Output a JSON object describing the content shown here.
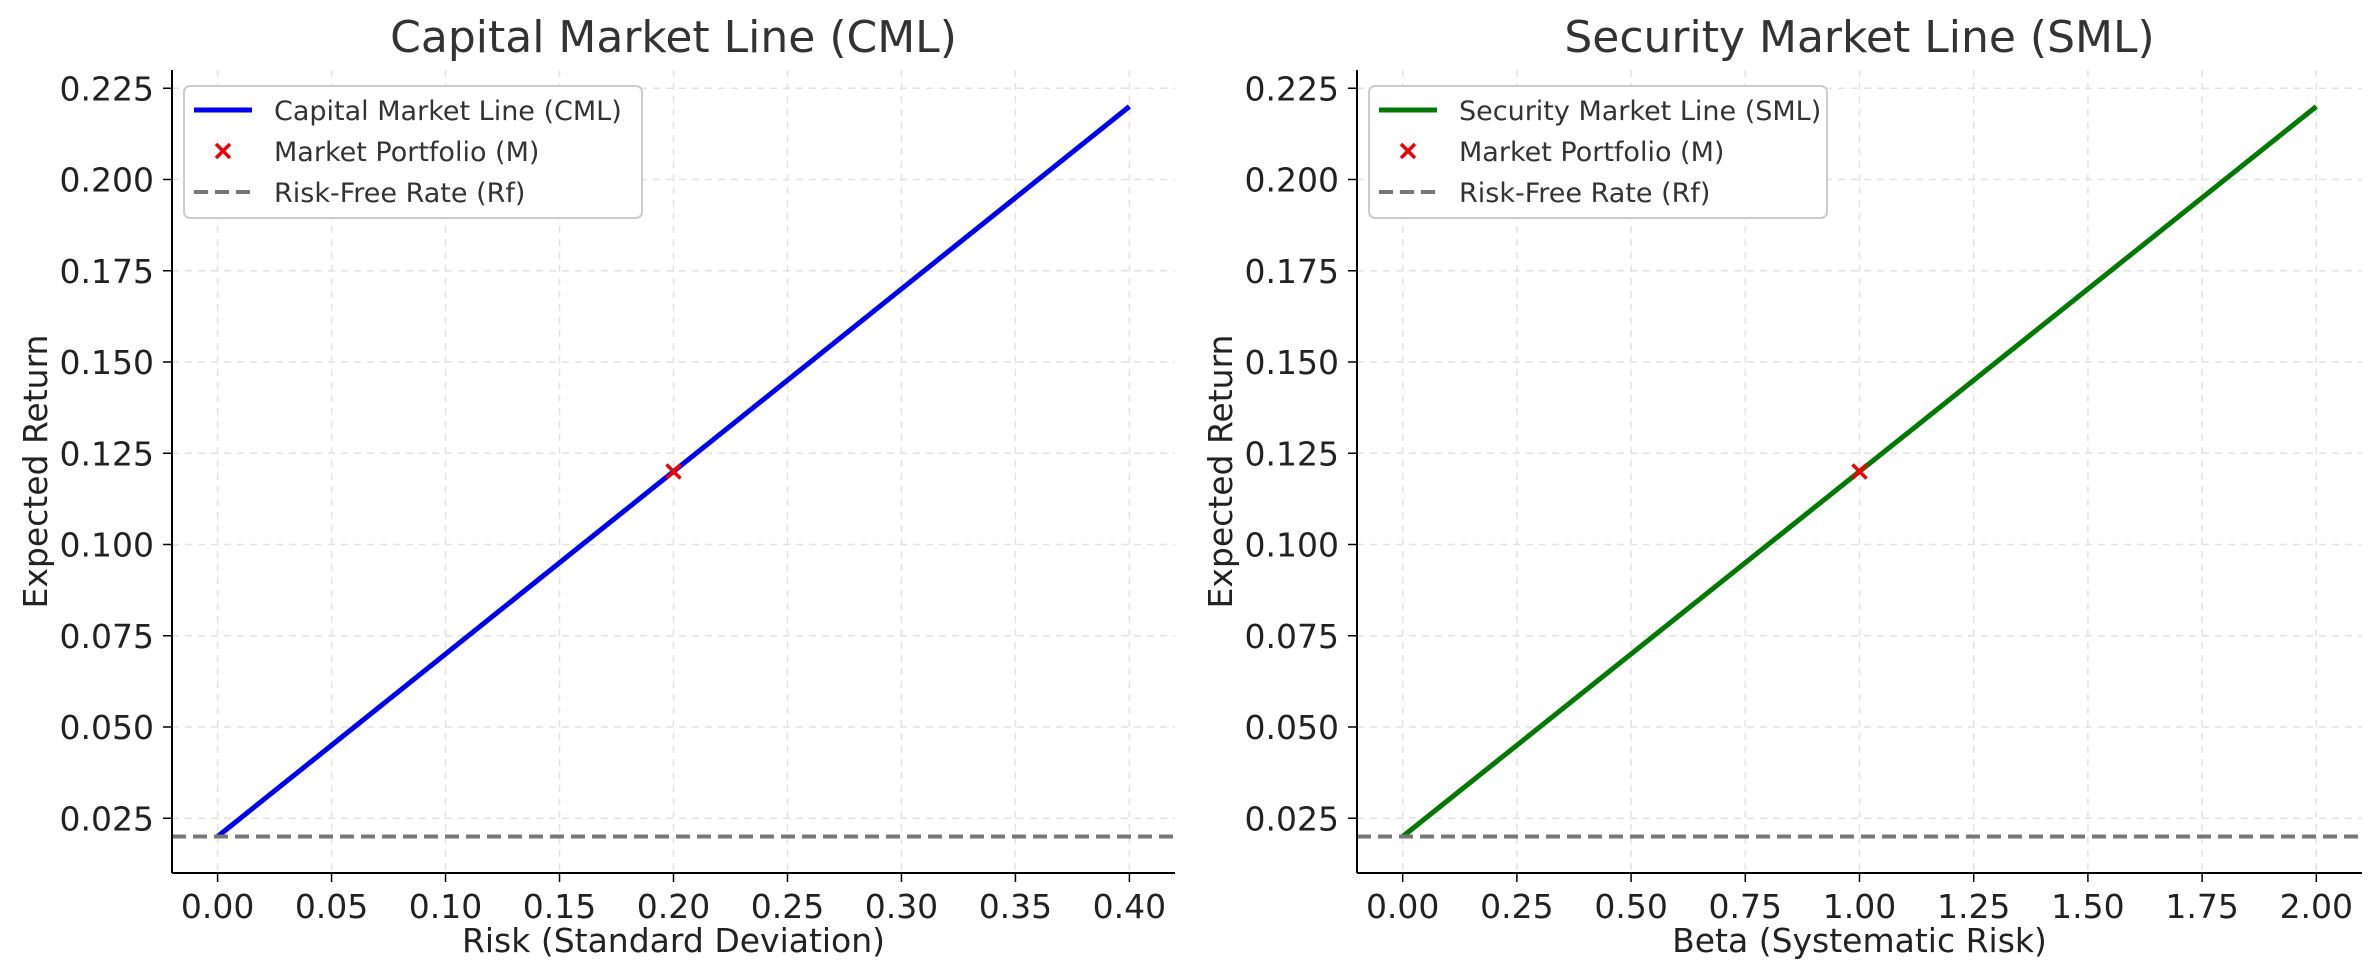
{
  "colors": {
    "cml_line": "#0000ee",
    "sml_line": "#007a00",
    "market_marker": "#ee0000",
    "risk_free_line": "#777777"
  },
  "chart_data": [
    {
      "type": "line",
      "title": "Capital Market Line (CML)",
      "xlabel": "Risk (Standard Deviation)",
      "ylabel": "Expected Return",
      "xlim": [
        -0.02,
        0.42
      ],
      "ylim": [
        0.01,
        0.23
      ],
      "xticks": [
        0.0,
        0.05,
        0.1,
        0.15,
        0.2,
        0.25,
        0.3,
        0.35,
        0.4
      ],
      "xtick_labels": [
        "0.00",
        "0.05",
        "0.10",
        "0.15",
        "0.20",
        "0.25",
        "0.30",
        "0.35",
        "0.40"
      ],
      "yticks": [
        0.025,
        0.05,
        0.075,
        0.1,
        0.125,
        0.15,
        0.175,
        0.2,
        0.225
      ],
      "ytick_labels": [
        "0.025",
        "0.050",
        "0.075",
        "0.100",
        "0.125",
        "0.150",
        "0.175",
        "0.200",
        "0.225"
      ],
      "grid": true,
      "legend_position": "top-left",
      "series": [
        {
          "name": "Capital Market Line (CML)",
          "kind": "line",
          "x": [
            0.0,
            0.4
          ],
          "y": [
            0.02,
            0.22
          ]
        },
        {
          "name": "Market Portfolio (M)",
          "kind": "marker",
          "x": [
            0.2
          ],
          "y": [
            0.12
          ]
        },
        {
          "name": "Risk-Free Rate (Rf)",
          "kind": "hline",
          "y": [
            0.02
          ]
        }
      ]
    },
    {
      "type": "line",
      "title": "Security Market Line (SML)",
      "xlabel": "Beta (Systematic Risk)",
      "ylabel": "Expected Return",
      "xlim": [
        -0.1,
        2.1
      ],
      "ylim": [
        0.01,
        0.23
      ],
      "xticks": [
        0.0,
        0.25,
        0.5,
        0.75,
        1.0,
        1.25,
        1.5,
        1.75,
        2.0
      ],
      "xtick_labels": [
        "0.00",
        "0.25",
        "0.50",
        "0.75",
        "1.00",
        "1.25",
        "1.50",
        "1.75",
        "2.00"
      ],
      "yticks": [
        0.025,
        0.05,
        0.075,
        0.1,
        0.125,
        0.15,
        0.175,
        0.2,
        0.225
      ],
      "ytick_labels": [
        "0.025",
        "0.050",
        "0.075",
        "0.100",
        "0.125",
        "0.150",
        "0.175",
        "0.200",
        "0.225"
      ],
      "grid": true,
      "legend_position": "top-left",
      "series": [
        {
          "name": "Security Market Line (SML)",
          "kind": "line",
          "x": [
            0.0,
            2.0
          ],
          "y": [
            0.02,
            0.22
          ]
        },
        {
          "name": "Market Portfolio (M)",
          "kind": "marker",
          "x": [
            1.0
          ],
          "y": [
            0.12
          ]
        },
        {
          "name": "Risk-Free Rate (Rf)",
          "kind": "hline",
          "y": [
            0.02
          ]
        }
      ]
    }
  ]
}
